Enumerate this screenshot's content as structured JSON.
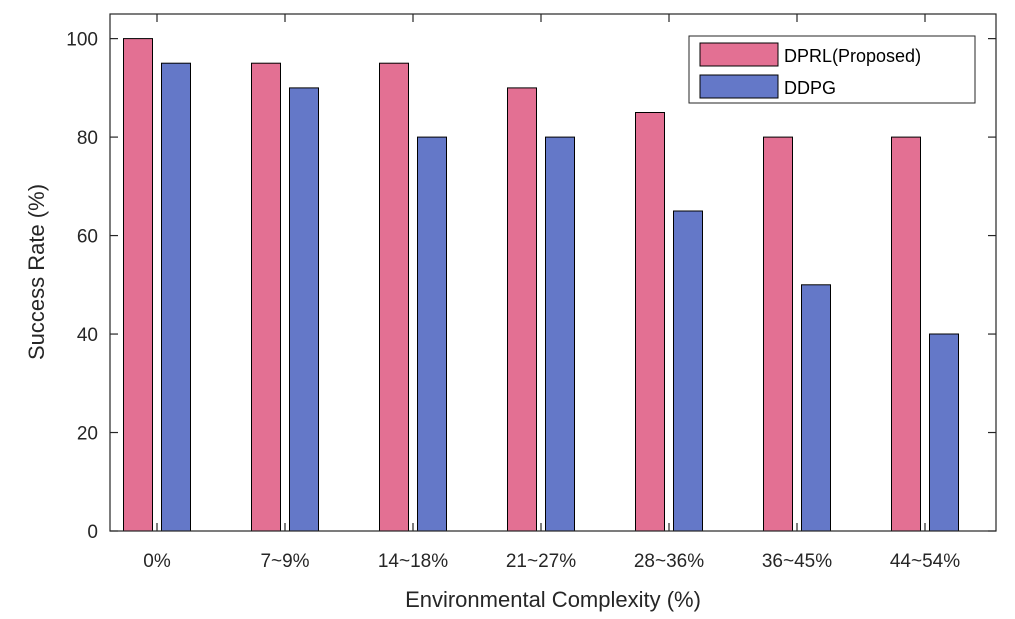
{
  "chart_data": {
    "type": "bar",
    "title": "",
    "xlabel": "Environmental Complexity (%)",
    "ylabel": "Success Rate (%)",
    "ylim": [
      0,
      105
    ],
    "yticks": [
      0,
      20,
      40,
      60,
      80,
      100
    ],
    "ytick_labels": [
      "0",
      "20",
      "40",
      "60",
      "80",
      "100"
    ],
    "grid": false,
    "legend_position": "top-right",
    "categories": [
      "0%",
      "7~9%",
      "14~18%",
      "21~27%",
      "28~36%",
      "36~45%",
      "44~54%"
    ],
    "series": [
      {
        "name": "DPRL(Proposed)",
        "color": "#E37093",
        "values": [
          100,
          95,
          95,
          90,
          85,
          80,
          80
        ]
      },
      {
        "name": "DDPG",
        "color": "#6478C8",
        "values": [
          95,
          90,
          80,
          80,
          65,
          50,
          40
        ]
      }
    ]
  }
}
